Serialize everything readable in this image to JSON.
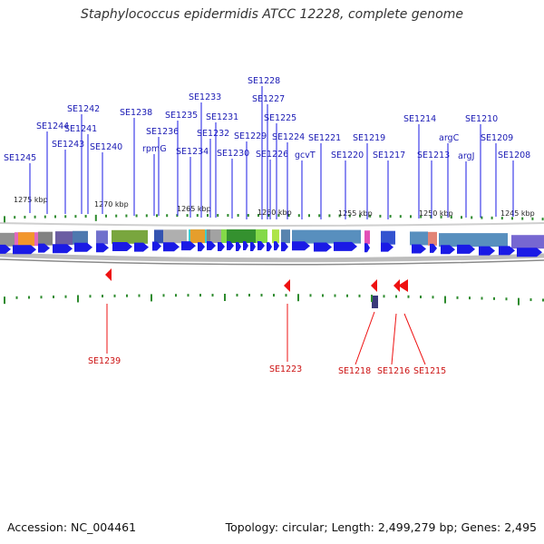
{
  "title": "Staphylococcus epidermidis ATCC 12228, complete genome",
  "footer": {
    "accession": "Accession: NC_004461",
    "summary": "Topology: circular; Length: 2,499,279 bp; Genes: 2,495"
  },
  "colors": {
    "forward_gene": "#1a1ae6",
    "reverse_gene": "#ee1111",
    "forward_label": "#1a1ab4",
    "reverse_label": "#cc1111",
    "tick": "#2e8b2e",
    "backbone": "#b8b8b8"
  },
  "kbp_labels": [
    "1275 kbp",
    "1270 kbp",
    "1265 kbp",
    "1260 kbp",
    "1255 kbp",
    "1250 kbp",
    "1245 kbp"
  ],
  "forward_labels": [
    "SE1245",
    "SE1244",
    "SE1243",
    "SE1242",
    "SE1241",
    "SE1240",
    "SE1238",
    "SE1236",
    "rpmG",
    "SE1235",
    "SE1234",
    "SE1233",
    "SE1232",
    "SE1231",
    "SE1230",
    "SE1229",
    "SE1228",
    "SE1227",
    "SE1226",
    "SE1225",
    "SE1224",
    "gcvT",
    "SE1221",
    "SE1220",
    "SE1219",
    "SE1217",
    "SE1214",
    "SE1213",
    "argC",
    "argJ",
    "SE1210",
    "SE1209",
    "SE1208"
  ],
  "reverse_labels": [
    "SE1239",
    "SE1223",
    "SE1218",
    "SE1216",
    "SE1215"
  ]
}
